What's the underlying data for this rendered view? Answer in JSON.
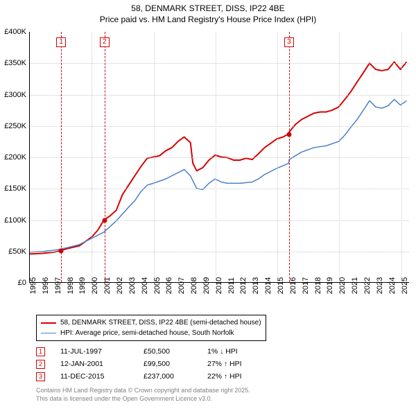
{
  "title": {
    "line1": "58, DENMARK STREET, DISS, IP22 4BE",
    "line2": "Price paid vs. HM Land Registry's House Price Index (HPI)"
  },
  "chart": {
    "type": "line",
    "background_color": "#ffffff",
    "grid_color": "#c9c9c9",
    "axis_color": "#000000",
    "xlim": [
      1995,
      2025.7
    ],
    "ylim": [
      0,
      400000
    ],
    "y_ticks": [
      {
        "v": 0,
        "label": "£0"
      },
      {
        "v": 50000,
        "label": "£50K"
      },
      {
        "v": 100000,
        "label": "£100K"
      },
      {
        "v": 150000,
        "label": "£150K"
      },
      {
        "v": 200000,
        "label": "£200K"
      },
      {
        "v": 250000,
        "label": "£250K"
      },
      {
        "v": 300000,
        "label": "£300K"
      },
      {
        "v": 350000,
        "label": "£350K"
      },
      {
        "v": 400000,
        "label": "£400K"
      }
    ],
    "x_ticks": [
      1995,
      1996,
      1997,
      1998,
      1999,
      2000,
      2001,
      2002,
      2003,
      2004,
      2005,
      2006,
      2007,
      2008,
      2009,
      2010,
      2011,
      2012,
      2013,
      2014,
      2015,
      2016,
      2017,
      2018,
      2019,
      2020,
      2021,
      2022,
      2023,
      2024,
      2025
    ],
    "x_grid_at": [
      1995,
      2000,
      2005,
      2010,
      2015,
      2020,
      2025
    ],
    "series": [
      {
        "id": "price_paid",
        "label": "58, DENMARK STREET, DISS, IP22 4BE (semi-detached house)",
        "color": "#d60000",
        "line_width": 2,
        "data": [
          [
            1995,
            45000
          ],
          [
            1996,
            46000
          ],
          [
            1997,
            48000
          ],
          [
            1997.5,
            50500
          ],
          [
            1998,
            53500
          ],
          [
            1999,
            58000
          ],
          [
            2000,
            72000
          ],
          [
            2000.5,
            83000
          ],
          [
            2001,
            99500
          ],
          [
            2001.5,
            106000
          ],
          [
            2002,
            115000
          ],
          [
            2002.5,
            140000
          ],
          [
            2003,
            155000
          ],
          [
            2003.5,
            170000
          ],
          [
            2004,
            185000
          ],
          [
            2004.5,
            198000
          ],
          [
            2005,
            200000
          ],
          [
            2005.5,
            202000
          ],
          [
            2006,
            210000
          ],
          [
            2006.5,
            215000
          ],
          [
            2007,
            225000
          ],
          [
            2007.5,
            232000
          ],
          [
            2008,
            223000
          ],
          [
            2008.2,
            190000
          ],
          [
            2008.5,
            178000
          ],
          [
            2009,
            183000
          ],
          [
            2009.5,
            195000
          ],
          [
            2010,
            203000
          ],
          [
            2010.5,
            200000
          ],
          [
            2011,
            199000
          ],
          [
            2011.5,
            195000
          ],
          [
            2012,
            195000
          ],
          [
            2012.5,
            198000
          ],
          [
            2013,
            196000
          ],
          [
            2013.5,
            205000
          ],
          [
            2014,
            215000
          ],
          [
            2014.5,
            222000
          ],
          [
            2015,
            229000
          ],
          [
            2015.5,
            232000
          ],
          [
            2015.95,
            237000
          ],
          [
            2016,
            240000
          ],
          [
            2016.5,
            252000
          ],
          [
            2017,
            260000
          ],
          [
            2017.5,
            265000
          ],
          [
            2018,
            270000
          ],
          [
            2018.5,
            272000
          ],
          [
            2019,
            272000
          ],
          [
            2019.5,
            275000
          ],
          [
            2020,
            280000
          ],
          [
            2020.5,
            292000
          ],
          [
            2021,
            305000
          ],
          [
            2021.5,
            320000
          ],
          [
            2022,
            335000
          ],
          [
            2022.5,
            350000
          ],
          [
            2023,
            340000
          ],
          [
            2023.5,
            338000
          ],
          [
            2024,
            340000
          ],
          [
            2024.5,
            352000
          ],
          [
            2025,
            340000
          ],
          [
            2025.5,
            352000
          ]
        ]
      },
      {
        "id": "hpi",
        "label": "HPI: Average price, semi-detached house, South Norfolk",
        "color": "#4a7fc9",
        "line_width": 1.5,
        "data": [
          [
            1995,
            48000
          ],
          [
            1996,
            49000
          ],
          [
            1997,
            51000
          ],
          [
            1998,
            55000
          ],
          [
            1999,
            60000
          ],
          [
            2000,
            70000
          ],
          [
            2001,
            80000
          ],
          [
            2002,
            98000
          ],
          [
            2003,
            120000
          ],
          [
            2003.5,
            130000
          ],
          [
            2004,
            145000
          ],
          [
            2004.5,
            155000
          ],
          [
            2005,
            158000
          ],
          [
            2006,
            165000
          ],
          [
            2007,
            175000
          ],
          [
            2007.5,
            180000
          ],
          [
            2008,
            170000
          ],
          [
            2008.5,
            150000
          ],
          [
            2009,
            148000
          ],
          [
            2009.5,
            158000
          ],
          [
            2010,
            165000
          ],
          [
            2010.5,
            160000
          ],
          [
            2011,
            158000
          ],
          [
            2012,
            158000
          ],
          [
            2013,
            160000
          ],
          [
            2013.5,
            165000
          ],
          [
            2014,
            172000
          ],
          [
            2015,
            182000
          ],
          [
            2015.95,
            190000
          ],
          [
            2016,
            196000
          ],
          [
            2017,
            208000
          ],
          [
            2018,
            215000
          ],
          [
            2019,
            218000
          ],
          [
            2020,
            225000
          ],
          [
            2020.5,
            235000
          ],
          [
            2021,
            248000
          ],
          [
            2021.5,
            260000
          ],
          [
            2022,
            275000
          ],
          [
            2022.5,
            290000
          ],
          [
            2023,
            280000
          ],
          [
            2023.5,
            278000
          ],
          [
            2024,
            282000
          ],
          [
            2024.5,
            292000
          ],
          [
            2025,
            283000
          ],
          [
            2025.5,
            290000
          ]
        ]
      }
    ],
    "markers": [
      {
        "n": "1",
        "x": 1997.53,
        "y": 50500
      },
      {
        "n": "2",
        "x": 2001.03,
        "y": 99500
      },
      {
        "n": "3",
        "x": 2015.95,
        "y": 237000
      }
    ]
  },
  "legend": {
    "items": [
      {
        "color": "#d60000",
        "width": 2,
        "label": "58, DENMARK STREET, DISS, IP22 4BE (semi-detached house)"
      },
      {
        "color": "#4a7fc9",
        "width": 1.5,
        "label": "HPI: Average price, semi-detached house, South Norfolk"
      }
    ]
  },
  "transactions": [
    {
      "n": "1",
      "date": "11-JUL-1997",
      "price": "£50,500",
      "diff_pct": "1%",
      "arrow": "↓",
      "vs": "HPI"
    },
    {
      "n": "2",
      "date": "12-JAN-2001",
      "price": "£99,500",
      "diff_pct": "27%",
      "arrow": "↑",
      "vs": "HPI"
    },
    {
      "n": "3",
      "date": "11-DEC-2015",
      "price": "£237,000",
      "diff_pct": "22%",
      "arrow": "↑",
      "vs": "HPI"
    }
  ],
  "attribution": {
    "line1": "Contains HM Land Registry data © Crown copyright and database right 2025.",
    "line2": "This data is licensed under the Open Government Licence v3.0."
  }
}
